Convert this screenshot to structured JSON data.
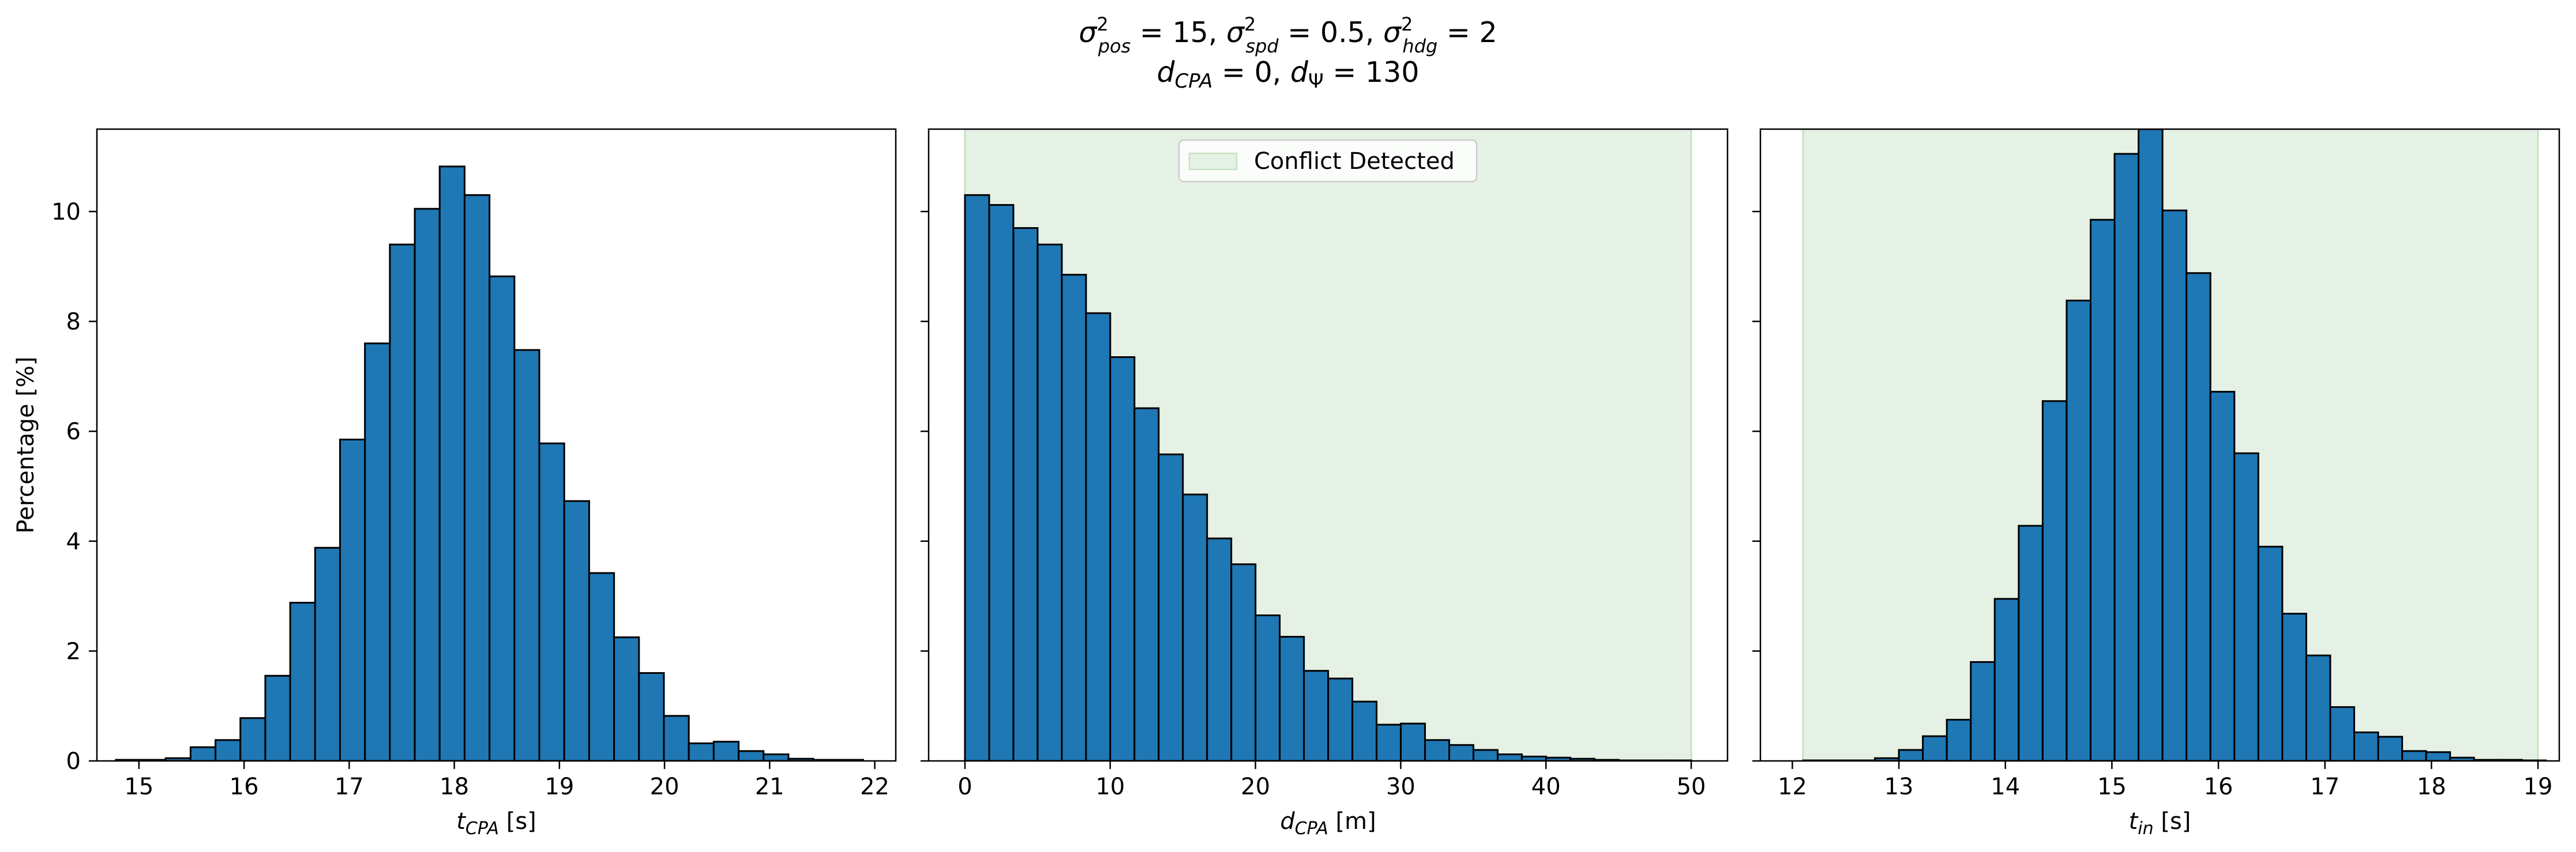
{
  "suptitle": {
    "line1": {
      "sym1": "σ",
      "sup1": "2",
      "sub1": "pos",
      "rest1": " = 15, ",
      "sym2": "σ",
      "sup2": "2",
      "sub2": "spd",
      "rest2": " = 0.5, ",
      "sym3": "σ",
      "sup3": "2",
      "sub3": "hdg",
      "rest3": " = 2"
    },
    "line2": {
      "sym1": "d",
      "sub1": "CPA",
      "rest1": " = 0, ",
      "sym2": "d",
      "sub2": "Ψ",
      "rest2": " = 130"
    }
  },
  "colors": {
    "bar_fill": "#1f77b4",
    "bar_edge": "#000000",
    "conflict_region": "#e5f1e4",
    "conflict_edge": "#c6e3c3"
  },
  "chart_data": [
    {
      "type": "bar",
      "subtype": "histogram",
      "xlabel": {
        "sym": "t",
        "sub": "CPA",
        "unit": " [s]"
      },
      "ylabel": "Percentage [%]",
      "xlim": [
        14.6,
        22.2
      ],
      "ylim": [
        0,
        11.5
      ],
      "x_ticks": [
        15,
        16,
        17,
        18,
        19,
        20,
        21,
        22
      ],
      "y_ticks": [
        0,
        2,
        4,
        6,
        8,
        10
      ],
      "bin_start": 14.78,
      "bin_width": 0.237,
      "values": [
        0.02,
        0.02,
        0.05,
        0.25,
        0.38,
        0.78,
        1.55,
        2.88,
        3.88,
        5.85,
        7.6,
        9.4,
        10.05,
        10.82,
        10.3,
        8.82,
        7.48,
        5.78,
        4.73,
        3.42,
        2.25,
        1.6,
        0.82,
        0.32,
        0.35,
        0.18,
        0.12,
        0.04,
        0.02,
        0.02
      ]
    },
    {
      "type": "bar",
      "subtype": "histogram",
      "xlabel": {
        "sym": "d",
        "sub": "CPA",
        "unit": " [m]"
      },
      "xlim": [
        -2.5,
        52.5
      ],
      "ylim": [
        0,
        11.5
      ],
      "x_ticks": [
        0,
        10,
        20,
        30,
        40,
        50
      ],
      "y_ticks": [
        0,
        2,
        4,
        6,
        8,
        10
      ],
      "bin_start": 0,
      "bin_width": 1.667,
      "values": [
        10.3,
        10.12,
        9.7,
        9.4,
        8.85,
        8.15,
        7.35,
        6.42,
        5.58,
        4.85,
        4.05,
        3.58,
        2.65,
        2.26,
        1.64,
        1.5,
        1.08,
        0.66,
        0.68,
        0.38,
        0.29,
        0.2,
        0.12,
        0.08,
        0.06,
        0.04,
        0.02,
        0.01,
        0.01,
        0.01
      ],
      "conflict_region": [
        0,
        50
      ],
      "legend": {
        "label": "Conflict Detected",
        "placement": "top-center"
      }
    },
    {
      "type": "bar",
      "subtype": "histogram",
      "xlabel": {
        "sym": "t",
        "sub": "in",
        "unit": " [s]"
      },
      "xlim": [
        11.7,
        19.2
      ],
      "ylim": [
        0,
        11.5
      ],
      "x_ticks": [
        12,
        13,
        14,
        15,
        16,
        17,
        18,
        19
      ],
      "y_ticks": [
        0,
        2,
        4,
        6,
        8,
        10
      ],
      "bin_start": 12.1,
      "bin_width": 0.225,
      "values": [
        0.01,
        0.01,
        0.01,
        0.05,
        0.2,
        0.45,
        0.75,
        1.8,
        2.95,
        4.28,
        6.55,
        8.38,
        9.85,
        11.05,
        11.5,
        10.02,
        8.88,
        6.72,
        5.6,
        3.9,
        2.68,
        1.92,
        0.98,
        0.52,
        0.44,
        0.18,
        0.16,
        0.06,
        0.02,
        0.02,
        0.01
      ],
      "conflict_region": [
        12.1,
        19.0
      ]
    }
  ]
}
